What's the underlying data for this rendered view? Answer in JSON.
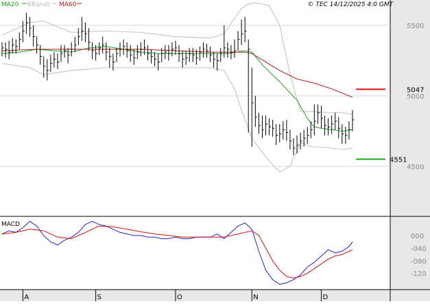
{
  "legend": {
    "ma20": "MA20",
    "bbands": "BBands",
    "ma60": "MA60"
  },
  "copyright": "© TEC 14/12/2025 4:0 GMT",
  "macd_label": "MACD",
  "colors": {
    "background": "#ffffff",
    "axis_panel": "#e8e8e8",
    "ma20": "#1aa51a",
    "ma60": "#b01515",
    "bbands": "#c8c8c8",
    "price": "#000000",
    "macd": "#2020d0",
    "signal": "#d01010",
    "resistance": "#dd1111",
    "support": "#11aa11",
    "grid": "#d8d8d8"
  },
  "chart_data": [
    {
      "type": "ohlc",
      "name": "price",
      "x": [
        "2025-07-24",
        "2025-07-25",
        "2025-07-28",
        "2025-07-29",
        "2025-07-30",
        "2025-07-31",
        "2025-08-01",
        "2025-08-04",
        "2025-08-05",
        "2025-08-06",
        "2025-08-07",
        "2025-08-08",
        "2025-08-11",
        "2025-08-12",
        "2025-08-13",
        "2025-08-14",
        "2025-08-15",
        "2025-08-18",
        "2025-08-19",
        "2025-08-20",
        "2025-08-21",
        "2025-08-22",
        "2025-08-25",
        "2025-08-26",
        "2025-08-27",
        "2025-08-28",
        "2025-08-29",
        "2025-09-01",
        "2025-09-02",
        "2025-09-03",
        "2025-09-04",
        "2025-09-05",
        "2025-09-08",
        "2025-09-09",
        "2025-09-10",
        "2025-09-11",
        "2025-09-12",
        "2025-09-15",
        "2025-09-16",
        "2025-09-17",
        "2025-09-18",
        "2025-09-19",
        "2025-09-22",
        "2025-09-23",
        "2025-09-24",
        "2025-09-25",
        "2025-09-26",
        "2025-09-29",
        "2025-09-30",
        "2025-10-01",
        "2025-10-02",
        "2025-10-03",
        "2025-10-06",
        "2025-10-07",
        "2025-10-08",
        "2025-10-09",
        "2025-10-10",
        "2025-10-13",
        "2025-10-14",
        "2025-10-15",
        "2025-10-16",
        "2025-10-17",
        "2025-10-20",
        "2025-10-21",
        "2025-10-22",
        "2025-10-23",
        "2025-10-24",
        "2025-10-27",
        "2025-10-28",
        "2025-10-29",
        "2025-10-30",
        "2025-10-31",
        "2025-11-03",
        "2025-11-04",
        "2025-11-05",
        "2025-11-06",
        "2025-11-07",
        "2025-11-10",
        "2025-11-11",
        "2025-11-12",
        "2025-11-13",
        "2025-11-14",
        "2025-11-17",
        "2025-11-18",
        "2025-11-19",
        "2025-11-20",
        "2025-11-21",
        "2025-11-24",
        "2025-11-25",
        "2025-11-26",
        "2025-11-27",
        "2025-11-28",
        "2025-12-01",
        "2025-12-02",
        "2025-12-03",
        "2025-12-04",
        "2025-12-05",
        "2025-12-08",
        "2025-12-09",
        "2025-12-10",
        "2025-12-11",
        "2025-12-12"
      ],
      "close": [
        5340,
        5330,
        5310,
        5360,
        5350,
        5400,
        5460,
        5520,
        5480,
        5420,
        5360,
        5280,
        5210,
        5180,
        5230,
        5260,
        5240,
        5300,
        5320,
        5290,
        5330,
        5360,
        5420,
        5460,
        5440,
        5380,
        5320,
        5300,
        5340,
        5360,
        5310,
        5280,
        5240,
        5300,
        5330,
        5350,
        5320,
        5290,
        5270,
        5310,
        5330,
        5340,
        5300,
        5280,
        5260,
        5240,
        5300,
        5310,
        5300,
        5330,
        5340,
        5300,
        5260,
        5270,
        5300,
        5290,
        5270,
        5310,
        5330,
        5320,
        5290,
        5260,
        5250,
        5300,
        5340,
        5330,
        5310,
        5320,
        5400,
        5440,
        5460,
        5330,
        4950,
        4850,
        4790,
        4760,
        4800,
        4780,
        4770,
        4720,
        4730,
        4760,
        4740,
        4680,
        4630,
        4650,
        4680,
        4700,
        4720,
        4760,
        4820,
        4880,
        4840,
        4790,
        4780,
        4800,
        4820,
        4770,
        4730,
        4720,
        4760,
        4830
      ],
      "high": [
        5380,
        5380,
        5390,
        5410,
        5400,
        5450,
        5530,
        5590,
        5560,
        5500,
        5420,
        5360,
        5280,
        5260,
        5290,
        5310,
        5300,
        5360,
        5360,
        5340,
        5380,
        5420,
        5480,
        5560,
        5520,
        5480,
        5380,
        5360,
        5380,
        5420,
        5380,
        5340,
        5300,
        5340,
        5380,
        5400,
        5380,
        5360,
        5330,
        5360,
        5380,
        5400,
        5360,
        5330,
        5310,
        5300,
        5340,
        5360,
        5360,
        5380,
        5390,
        5360,
        5320,
        5320,
        5340,
        5340,
        5330,
        5350,
        5380,
        5370,
        5350,
        5310,
        5300,
        5340,
        5500,
        5380,
        5360,
        5400,
        5460,
        5540,
        5560,
        5400,
        5200,
        5000,
        4880,
        4860,
        4860,
        4840,
        4830,
        4800,
        4800,
        4820,
        4830,
        4760,
        4700,
        4720,
        4740,
        4760,
        4780,
        4820,
        4940,
        4940,
        4930,
        4860,
        4840,
        4860,
        4880,
        4850,
        4800,
        4780,
        4820,
        4900
      ],
      "low": [
        5280,
        5270,
        5260,
        5300,
        5300,
        5330,
        5380,
        5440,
        5420,
        5350,
        5300,
        5220,
        5130,
        5110,
        5170,
        5200,
        5190,
        5240,
        5270,
        5230,
        5280,
        5310,
        5360,
        5390,
        5380,
        5320,
        5260,
        5250,
        5290,
        5300,
        5250,
        5200,
        5180,
        5240,
        5280,
        5290,
        5270,
        5240,
        5220,
        5260,
        5280,
        5290,
        5250,
        5230,
        5210,
        5180,
        5240,
        5260,
        5250,
        5280,
        5290,
        5240,
        5200,
        5220,
        5240,
        5240,
        5220,
        5250,
        5270,
        5270,
        5240,
        5200,
        5180,
        5240,
        5270,
        5270,
        5260,
        5270,
        5320,
        5360,
        5380,
        4740,
        4640,
        4780,
        4730,
        4700,
        4720,
        4720,
        4710,
        4650,
        4670,
        4690,
        4680,
        4620,
        4580,
        4590,
        4620,
        4640,
        4660,
        4700,
        4720,
        4800,
        4770,
        4720,
        4720,
        4730,
        4760,
        4700,
        4660,
        4660,
        4690,
        4750
      ]
    },
    {
      "type": "line",
      "series": [
        {
          "name": "MA20",
          "points": [
            [
              0,
              5300
            ],
            [
              5,
              5310
            ],
            [
              10,
              5330
            ],
            [
              15,
              5320
            ],
            [
              20,
              5310
            ],
            [
              25,
              5340
            ],
            [
              30,
              5350
            ],
            [
              35,
              5330
            ],
            [
              40,
              5310
            ],
            [
              45,
              5300
            ],
            [
              50,
              5300
            ],
            [
              55,
              5300
            ],
            [
              60,
              5300
            ],
            [
              65,
              5300
            ],
            [
              70,
              5320
            ],
            [
              72,
              5310
            ],
            [
              75,
              5220
            ],
            [
              80,
              5100
            ],
            [
              85,
              4970
            ],
            [
              88,
              4840
            ],
            [
              90,
              4780
            ],
            [
              92,
              4770
            ],
            [
              95,
              4760
            ],
            [
              98,
              4750
            ],
            [
              101,
              4760
            ]
          ]
        },
        {
          "name": "MA60",
          "points": [
            [
              0,
              5320
            ],
            [
              10,
              5330
            ],
            [
              20,
              5330
            ],
            [
              30,
              5330
            ],
            [
              40,
              5330
            ],
            [
              50,
              5320
            ],
            [
              60,
              5310
            ],
            [
              70,
              5310
            ],
            [
              72,
              5300
            ],
            [
              76,
              5240
            ],
            [
              80,
              5180
            ],
            [
              85,
              5120
            ],
            [
              90,
              5090
            ],
            [
              95,
              5050
            ],
            [
              101,
              4990
            ]
          ]
        },
        {
          "name": "BBands",
          "points": [
            [
              0,
              5430
            ],
            [
              8,
              5520
            ],
            [
              12,
              5530
            ],
            [
              20,
              5450
            ],
            [
              30,
              5460
            ],
            [
              40,
              5450
            ],
            [
              50,
              5420
            ],
            [
              60,
              5410
            ],
            [
              64,
              5440
            ],
            [
              67,
              5550
            ],
            [
              69,
              5620
            ],
            [
              71,
              5650
            ],
            [
              73,
              5660
            ],
            [
              77,
              5640
            ],
            [
              80,
              5500
            ],
            [
              83,
              5150
            ],
            [
              86,
              4890
            ],
            [
              89,
              4890
            ],
            [
              95,
              4880
            ],
            [
              98,
              4880
            ],
            [
              101,
              4870
            ]
          ]
        },
        {
          "name": "BBands",
          "points": [
            [
              0,
              5230
            ],
            [
              8,
              5200
            ],
            [
              12,
              5150
            ],
            [
              20,
              5180
            ],
            [
              30,
              5200
            ],
            [
              40,
              5200
            ],
            [
              50,
              5200
            ],
            [
              60,
              5200
            ],
            [
              64,
              5180
            ],
            [
              67,
              5050
            ],
            [
              69,
              4900
            ],
            [
              72,
              4700
            ],
            [
              75,
              4600
            ],
            [
              78,
              4510
            ],
            [
              80,
              4460
            ],
            [
              83,
              4500
            ],
            [
              86,
              4670
            ],
            [
              89,
              4640
            ],
            [
              95,
              4630
            ],
            [
              98,
              4620
            ],
            [
              101,
              4630
            ]
          ]
        }
      ]
    },
    {
      "type": "line",
      "name": "MACD",
      "series": [
        {
          "name": "MACD",
          "points": [
            [
              0,
              5
            ],
            [
              2,
              15
            ],
            [
              4,
              10
            ],
            [
              6,
              25
            ],
            [
              8,
              45
            ],
            [
              10,
              30
            ],
            [
              12,
              0
            ],
            [
              14,
              -20
            ],
            [
              16,
              -30
            ],
            [
              18,
              -15
            ],
            [
              20,
              -5
            ],
            [
              22,
              10
            ],
            [
              24,
              35
            ],
            [
              26,
              45
            ],
            [
              28,
              35
            ],
            [
              30,
              30
            ],
            [
              32,
              20
            ],
            [
              34,
              10
            ],
            [
              36,
              5
            ],
            [
              38,
              0
            ],
            [
              40,
              0
            ],
            [
              42,
              -5
            ],
            [
              44,
              -5
            ],
            [
              46,
              -10
            ],
            [
              48,
              -10
            ],
            [
              50,
              -5
            ],
            [
              52,
              -10
            ],
            [
              54,
              -10
            ],
            [
              56,
              -5
            ],
            [
              58,
              -5
            ],
            [
              60,
              -5
            ],
            [
              62,
              5
            ],
            [
              64,
              -10
            ],
            [
              66,
              10
            ],
            [
              68,
              30
            ],
            [
              70,
              40
            ],
            [
              72,
              20
            ],
            [
              74,
              -50
            ],
            [
              76,
              -110
            ],
            [
              78,
              -140
            ],
            [
              80,
              -155
            ],
            [
              82,
              -150
            ],
            [
              84,
              -140
            ],
            [
              86,
              -125
            ],
            [
              88,
              -100
            ],
            [
              90,
              -85
            ],
            [
              92,
              -65
            ],
            [
              94,
              -45
            ],
            [
              96,
              -55
            ],
            [
              98,
              -50
            ],
            [
              100,
              -35
            ],
            [
              101,
              -20
            ]
          ]
        },
        {
          "name": "Signal",
          "points": [
            [
              0,
              5
            ],
            [
              4,
              10
            ],
            [
              8,
              20
            ],
            [
              12,
              15
            ],
            [
              16,
              -5
            ],
            [
              20,
              -10
            ],
            [
              24,
              10
            ],
            [
              28,
              30
            ],
            [
              32,
              28
            ],
            [
              36,
              20
            ],
            [
              40,
              12
            ],
            [
              44,
              5
            ],
            [
              48,
              0
            ],
            [
              52,
              -5
            ],
            [
              56,
              -5
            ],
            [
              60,
              -5
            ],
            [
              64,
              -5
            ],
            [
              68,
              5
            ],
            [
              72,
              15
            ],
            [
              74,
              0
            ],
            [
              76,
              -40
            ],
            [
              78,
              -80
            ],
            [
              80,
              -110
            ],
            [
              82,
              -130
            ],
            [
              84,
              -135
            ],
            [
              86,
              -130
            ],
            [
              88,
              -120
            ],
            [
              90,
              -105
            ],
            [
              92,
              -90
            ],
            [
              94,
              -75
            ],
            [
              96,
              -65
            ],
            [
              98,
              -60
            ],
            [
              100,
              -50
            ],
            [
              101,
              -45
            ]
          ]
        }
      ]
    }
  ],
  "price_axis": {
    "ticks": [
      "5500",
      "5000",
      "4500"
    ],
    "min": 4200,
    "max": 5700
  },
  "resistance": {
    "value": 5047,
    "label": "5047"
  },
  "support": {
    "value": 4551,
    "label": "4551"
  },
  "macd_axis": {
    "ticks": [
      "000",
      "-040",
      "-080",
      "-120"
    ],
    "min": -170,
    "max": 60
  },
  "months": [
    {
      "label": "A",
      "index": 6
    },
    {
      "label": "S",
      "index": 27
    },
    {
      "label": "O",
      "index": 50
    },
    {
      "label": "N",
      "index": 72
    },
    {
      "label": "D",
      "index": 92
    }
  ]
}
